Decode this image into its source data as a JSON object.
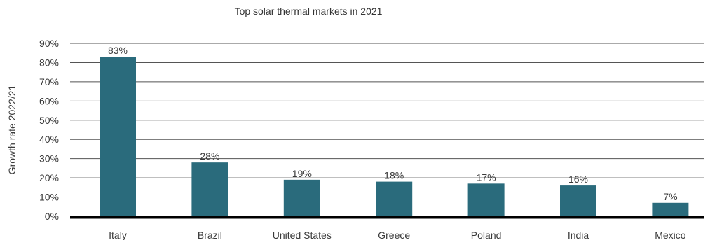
{
  "chart_data": {
    "type": "bar",
    "title": "Top solar thermal markets in 2021",
    "xlabel": "",
    "ylabel": "Growth rate 2022/21",
    "categories": [
      "Italy",
      "Brazil",
      "United States",
      "Greece",
      "Poland",
      "India",
      "Mexico"
    ],
    "values": [
      83,
      28,
      19,
      18,
      17,
      16,
      7
    ],
    "data_labels": [
      "83%",
      "28%",
      "19%",
      "18%",
      "17%",
      "16%",
      "7%"
    ],
    "ylim": [
      0,
      90
    ],
    "yticks": [
      0,
      10,
      20,
      30,
      40,
      50,
      60,
      70,
      80,
      90
    ],
    "ytick_labels": [
      "0%",
      "10%",
      "20%",
      "30%",
      "40%",
      "50%",
      "60%",
      "70%",
      "80%",
      "90%"
    ],
    "grid": true,
    "legend": "none",
    "bar_color": "#2a6b7c"
  }
}
